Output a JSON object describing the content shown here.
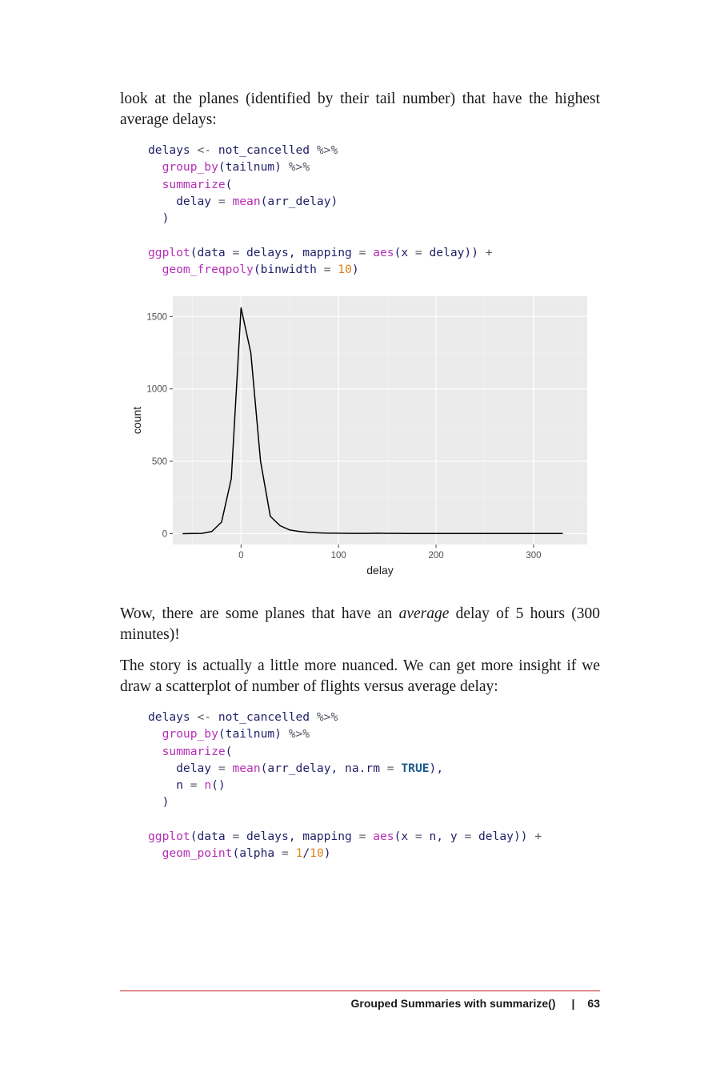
{
  "paragraphs": {
    "p1": "look at the planes (identified by their tail number) that have the highest average delays:",
    "p2_before": "Wow, there are some planes that have an ",
    "p2_em": "average",
    "p2_after": " delay of 5 hours (300 minutes)!",
    "p3": "The story is actually a little more nuanced. We can get more insight if we draw a scatterplot of number of flights versus average delay:"
  },
  "code1": [
    [
      [
        "var",
        "delays"
      ],
      [
        "op",
        " <- "
      ],
      [
        "var",
        "not_cancelled"
      ],
      [
        "op",
        " %>%"
      ]
    ],
    [
      [
        "p",
        "  "
      ],
      [
        "fn",
        "group_by"
      ],
      [
        "p",
        "(tailnum)"
      ],
      [
        "op",
        " %>%"
      ]
    ],
    [
      [
        "p",
        "  "
      ],
      [
        "fn",
        "summarize"
      ],
      [
        "p",
        "("
      ]
    ],
    [
      [
        "p",
        "    delay "
      ],
      [
        "op",
        "="
      ],
      [
        "p",
        " "
      ],
      [
        "fn",
        "mean"
      ],
      [
        "p",
        "(arr_delay)"
      ]
    ],
    [
      [
        "p",
        "  )"
      ]
    ],
    [
      [
        "p",
        ""
      ]
    ],
    [
      [
        "fn",
        "ggplot"
      ],
      [
        "p",
        "(data "
      ],
      [
        "op",
        "="
      ],
      [
        "p",
        " delays, mapping "
      ],
      [
        "op",
        "="
      ],
      [
        "p",
        " "
      ],
      [
        "fn",
        "aes"
      ],
      [
        "p",
        "(x "
      ],
      [
        "op",
        "="
      ],
      [
        "p",
        " delay))"
      ],
      [
        "op",
        " +"
      ]
    ],
    [
      [
        "p",
        "  "
      ],
      [
        "fn",
        "geom_freqpoly"
      ],
      [
        "p",
        "(binwidth "
      ],
      [
        "op",
        "="
      ],
      [
        "p",
        " "
      ],
      [
        "num",
        "10"
      ],
      [
        "p",
        ")"
      ]
    ]
  ],
  "code2": [
    [
      [
        "var",
        "delays"
      ],
      [
        "op",
        " <- "
      ],
      [
        "var",
        "not_cancelled"
      ],
      [
        "op",
        " %>%"
      ]
    ],
    [
      [
        "p",
        "  "
      ],
      [
        "fn",
        "group_by"
      ],
      [
        "p",
        "(tailnum)"
      ],
      [
        "op",
        " %>%"
      ]
    ],
    [
      [
        "p",
        "  "
      ],
      [
        "fn",
        "summarize"
      ],
      [
        "p",
        "("
      ]
    ],
    [
      [
        "p",
        "    delay "
      ],
      [
        "op",
        "="
      ],
      [
        "p",
        " "
      ],
      [
        "fn",
        "mean"
      ],
      [
        "p",
        "(arr_delay, na.rm "
      ],
      [
        "op",
        "="
      ],
      [
        "p",
        " "
      ],
      [
        "kw",
        "TRUE"
      ],
      [
        "p",
        "),"
      ]
    ],
    [
      [
        "p",
        "    n "
      ],
      [
        "op",
        "="
      ],
      [
        "p",
        " "
      ],
      [
        "fn",
        "n"
      ],
      [
        "p",
        "()"
      ]
    ],
    [
      [
        "p",
        "  )"
      ]
    ],
    [
      [
        "p",
        ""
      ]
    ],
    [
      [
        "fn",
        "ggplot"
      ],
      [
        "p",
        "(data "
      ],
      [
        "op",
        "="
      ],
      [
        "p",
        " delays, mapping "
      ],
      [
        "op",
        "="
      ],
      [
        "p",
        " "
      ],
      [
        "fn",
        "aes"
      ],
      [
        "p",
        "(x "
      ],
      [
        "op",
        "="
      ],
      [
        "p",
        " n, y "
      ],
      [
        "op",
        "="
      ],
      [
        "p",
        " delay))"
      ],
      [
        "op",
        " +"
      ]
    ],
    [
      [
        "p",
        "  "
      ],
      [
        "fn",
        "geom_point"
      ],
      [
        "p",
        "(alpha "
      ],
      [
        "op",
        "="
      ],
      [
        "p",
        " "
      ],
      [
        "num",
        "1"
      ],
      [
        "p",
        "/"
      ],
      [
        "num",
        "10"
      ],
      [
        "p",
        ")"
      ]
    ]
  ],
  "chart_data": {
    "type": "line",
    "xlabel": "delay",
    "ylabel": "count",
    "xlim": [
      -70,
      355
    ],
    "ylim": [
      -75,
      1640
    ],
    "xticks": [
      0,
      100,
      200,
      300
    ],
    "yticks": [
      0,
      500,
      1000,
      1500
    ],
    "grid": true,
    "series": [
      {
        "x": [
          -60,
          -50,
          -40,
          -30,
          -20,
          -10,
          0,
          10,
          20,
          30,
          40,
          50,
          60,
          70,
          80,
          90,
          100,
          110,
          120,
          130,
          140,
          150,
          160,
          170,
          180,
          190,
          200,
          210,
          220,
          230,
          240,
          250,
          260,
          270,
          280,
          290,
          300,
          310,
          320,
          330
        ],
        "values": [
          0,
          1,
          2,
          15,
          80,
          380,
          1560,
          1250,
          500,
          120,
          55,
          25,
          15,
          8,
          5,
          3,
          3,
          2,
          2,
          2,
          3,
          2,
          2,
          1,
          1,
          1,
          1,
          1,
          1,
          1,
          1,
          1,
          1,
          1,
          1,
          1,
          1,
          1,
          1,
          1
        ]
      }
    ]
  },
  "footer": {
    "section": "Grouped Summaries with summarize()",
    "separator": "|",
    "page_number": "63"
  }
}
